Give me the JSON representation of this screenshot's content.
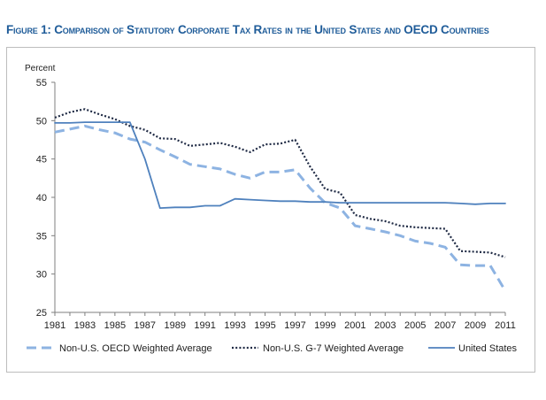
{
  "figure": {
    "title": "Figure 1: Comparison of Statutory Corporate Tax Rates in the United States and OECD Countries"
  },
  "chart_data": {
    "type": "line",
    "title": "Figure 1: Comparison of Statutory Corporate Tax Rates in the United States and OECD Countries",
    "ylabel": "Percent",
    "xlabel": "",
    "ylim": [
      25,
      55
    ],
    "yticks": [
      25,
      30,
      35,
      40,
      45,
      50,
      55
    ],
    "xlim": [
      1981,
      2011
    ],
    "xticks": [
      1981,
      1983,
      1985,
      1987,
      1989,
      1991,
      1993,
      1995,
      1997,
      1999,
      2001,
      2003,
      2005,
      2007,
      2009,
      2011
    ],
    "grid": false,
    "legend_position": "bottom",
    "x": [
      1981,
      1982,
      1983,
      1984,
      1985,
      1986,
      1987,
      1988,
      1989,
      1990,
      1991,
      1992,
      1993,
      1994,
      1995,
      1996,
      1997,
      1998,
      1999,
      2000,
      2001,
      2002,
      2003,
      2004,
      2005,
      2006,
      2007,
      2008,
      2009,
      2010,
      2011
    ],
    "series": [
      {
        "name": "Non-U.S. OECD Weighted Average",
        "style": "dashed",
        "color": "#8db3e2",
        "values": [
          48.5,
          48.9,
          49.3,
          48.8,
          48.4,
          47.6,
          47.2,
          46.2,
          45.3,
          44.3,
          44.0,
          43.7,
          43.0,
          42.5,
          43.3,
          43.3,
          43.6,
          41.2,
          39.3,
          38.6,
          36.3,
          35.9,
          35.5,
          35.0,
          34.3,
          34.0,
          33.5,
          31.2,
          31.1,
          31.1,
          27.8
        ]
      },
      {
        "name": "Non-U.S. G-7 Weighted Average",
        "style": "dotted",
        "color": "#1f2a44",
        "values": [
          50.4,
          51.1,
          51.5,
          50.8,
          50.2,
          49.3,
          48.8,
          47.7,
          47.6,
          46.7,
          46.9,
          47.1,
          46.6,
          45.9,
          46.9,
          47.0,
          47.5,
          44.0,
          41.1,
          40.6,
          37.7,
          37.2,
          36.9,
          36.3,
          36.1,
          36.0,
          35.9,
          33.0,
          32.9,
          32.8,
          32.2
        ]
      },
      {
        "name": "United States",
        "style": "solid",
        "color": "#4f81bd",
        "values": [
          49.7,
          49.7,
          49.8,
          49.8,
          49.8,
          49.8,
          45.0,
          38.6,
          38.7,
          38.7,
          38.9,
          38.9,
          39.8,
          39.7,
          39.6,
          39.5,
          39.5,
          39.4,
          39.4,
          39.3,
          39.3,
          39.3,
          39.3,
          39.3,
          39.3,
          39.3,
          39.3,
          39.2,
          39.1,
          39.2,
          39.2
        ]
      }
    ]
  }
}
